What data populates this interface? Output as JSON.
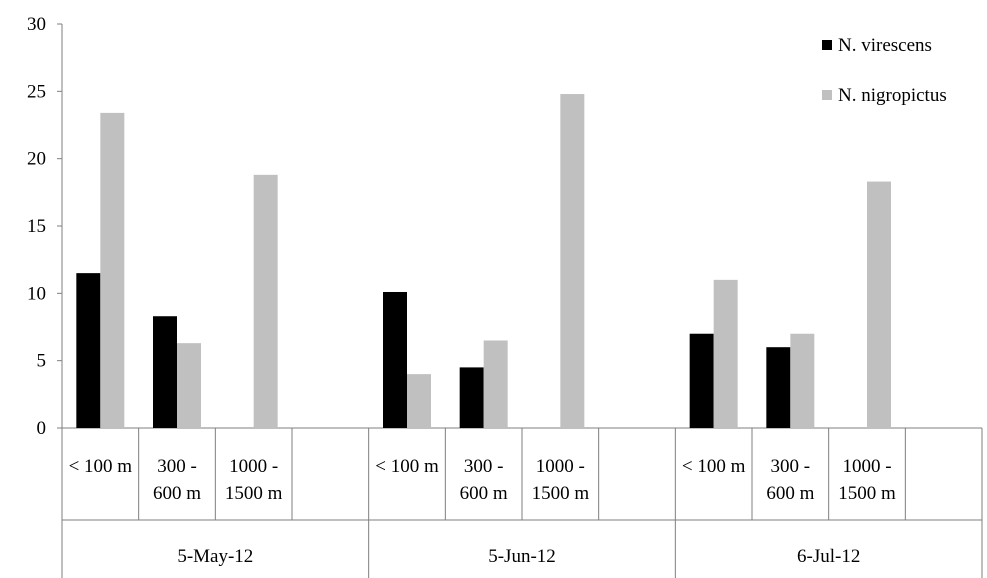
{
  "chart_data": {
    "type": "bar",
    "title": "",
    "xlabel": "",
    "ylabel": "",
    "ylim": [
      0,
      30
    ],
    "yticks": [
      0,
      5,
      10,
      15,
      20,
      25,
      30
    ],
    "legend_position": "top-right",
    "grid": false,
    "groups": [
      {
        "label": "5-May-12",
        "categories": [
          "< 100 m",
          "300 - 600 m",
          "1000 - 1500 m"
        ]
      },
      {
        "label": "5-Jun-12",
        "categories": [
          "< 100 m",
          "300 - 600 m",
          "1000 - 1500 m"
        ]
      },
      {
        "label": "6-Jul-12",
        "categories": [
          "< 100 m",
          "300 - 600 m",
          "1000 - 1500 m"
        ]
      }
    ],
    "category_lines": [
      [
        "< 100 m"
      ],
      [
        "300 -",
        "600 m"
      ],
      [
        "1000 -",
        "1500 m"
      ]
    ],
    "series": [
      {
        "name": "N. virescens",
        "color": "#000000",
        "values": [
          11.5,
          8.3,
          null,
          10.1,
          4.5,
          null,
          7.0,
          6.0,
          null
        ]
      },
      {
        "name": "N. nigropictus",
        "color": "#c0c0c0",
        "values": [
          23.4,
          6.3,
          18.8,
          4.0,
          6.5,
          24.8,
          11.0,
          7.0,
          18.3
        ]
      }
    ]
  }
}
